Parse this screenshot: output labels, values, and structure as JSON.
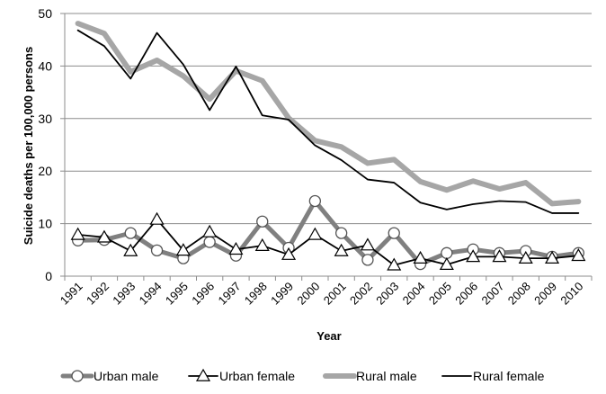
{
  "chart_data": {
    "type": "line",
    "title": "",
    "xlabel": "Year",
    "ylabel": "Suicide deaths per 100,000 persons",
    "ylim": [
      0,
      50
    ],
    "yticks": [
      0,
      10,
      20,
      30,
      40,
      50
    ],
    "grid": "horizontal",
    "legend_position": "bottom",
    "x": [
      "1991",
      "1992",
      "1993",
      "1994",
      "1995",
      "1996",
      "1997",
      "1998",
      "1999",
      "2000",
      "2001",
      "2002",
      "2003",
      "2004",
      "2005",
      "2006",
      "2007",
      "2008",
      "2009",
      "2010"
    ],
    "series": [
      {
        "name": "Urban male",
        "color": "#808080",
        "marker": "circle",
        "values": [
          6.8,
          6.9,
          8.2,
          4.9,
          3.4,
          6.5,
          3.9,
          10.4,
          5.4,
          14.3,
          8.2,
          3.1,
          8.2,
          2.3,
          4.4,
          5.1,
          4.4,
          4.8,
          3.7,
          4.4
        ]
      },
      {
        "name": "Urban female",
        "color": "#000000",
        "marker": "triangle",
        "values": [
          7.9,
          7.4,
          4.8,
          10.8,
          4.9,
          8.4,
          5.1,
          5.8,
          4.1,
          7.9,
          4.8,
          5.9,
          2.1,
          3.4,
          2.2,
          3.7,
          3.7,
          3.4,
          3.4,
          3.9
        ]
      },
      {
        "name": "Rural male",
        "color": "#a6a6a6",
        "marker": "none",
        "values": [
          48.1,
          46.2,
          38.9,
          41.1,
          38.1,
          33.7,
          39.1,
          37.2,
          30.1,
          25.8,
          24.6,
          21.5,
          22.2,
          18.0,
          16.4,
          18.1,
          16.6,
          17.8,
          13.8,
          14.2
        ]
      },
      {
        "name": "Rural female",
        "color": "#000000",
        "marker": "none",
        "values": [
          46.8,
          43.8,
          37.6,
          46.3,
          40.3,
          31.6,
          39.9,
          30.6,
          29.8,
          24.9,
          22.1,
          18.4,
          17.8,
          14.0,
          12.7,
          13.7,
          14.3,
          14.1,
          12.0,
          12.0
        ]
      }
    ]
  }
}
